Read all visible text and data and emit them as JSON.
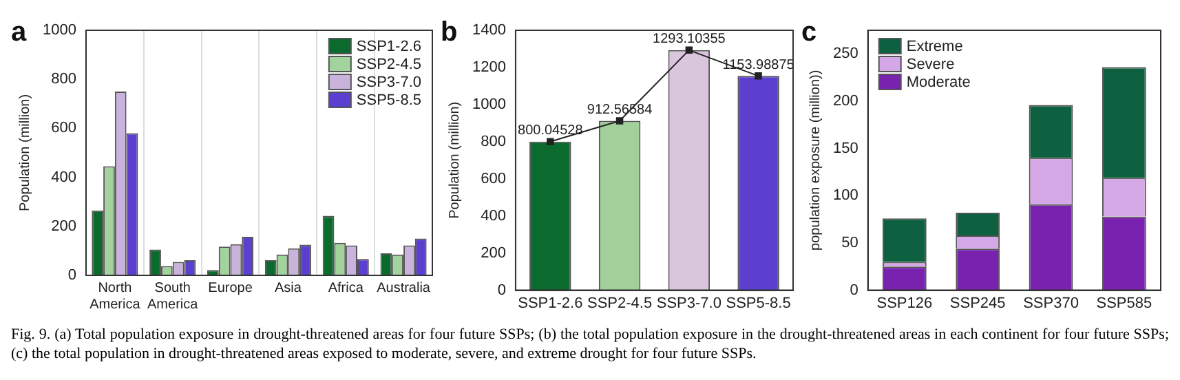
{
  "chart_data": [
    {
      "type": "bar",
      "title": "a",
      "ylabel": "Population (million)",
      "categories": [
        "North America",
        "South America",
        "Europe",
        "Asia",
        "Africa",
        "Australia"
      ],
      "series": [
        {
          "name": "SSP1-2.6",
          "color": "#0b6b2e",
          "values": [
            265,
            105,
            22,
            62,
            243,
            90
          ]
        },
        {
          "name": "SSP2-4.5",
          "color": "#a3d39c",
          "values": [
            445,
            38,
            117,
            85,
            133,
            85
          ]
        },
        {
          "name": "SSP3-7.0",
          "color": "#c9b3dd",
          "values": [
            750,
            55,
            127,
            110,
            122,
            122
          ]
        },
        {
          "name": "SSP5-8.5",
          "color": "#5b3fd1",
          "values": [
            580,
            62,
            157,
            125,
            67,
            150
          ]
        }
      ],
      "ylim": [
        0,
        1000
      ],
      "yticks": [
        0,
        200,
        400,
        600,
        800,
        1000
      ],
      "grid": "x",
      "legend": "top right",
      "annotations": [
        "Fig. 9. (a) Total population exposure in drought-threatened areas for four future SSPs; (b) the total population exposure in the drought-threatened areas in each continent for four future SSPs; (c) the total population in drought-threatened areas exposed to moderate, severe, and extreme drought for four future SSPs."
      ]
    },
    {
      "type": "bar",
      "title": "b",
      "ylabel": "Population (million)",
      "categories": [
        "SSP1-2.6",
        "SSP2-4.5",
        "SSP3-7.0",
        "SSP5-8.5"
      ],
      "series": [
        {
          "type": "bar",
          "colors": [
            "#0b6b2e",
            "#a3cf9a",
            "#d9c6dd",
            "#5c3fcf"
          ],
          "values": [
            800.04528,
            912.56584,
            1293.10355,
            1153.98875
          ]
        },
        {
          "type": "line",
          "color": "#222222",
          "marker": "square",
          "values": [
            800.04528,
            912.56584,
            1293.10355,
            1153.98875
          ],
          "value_labels": [
            "800.04528",
            "912.56584",
            "1293.10355",
            "1153.98875"
          ]
        }
      ],
      "ylim": [
        0,
        1400
      ],
      "yticks": [
        0,
        200,
        400,
        600,
        800,
        1000,
        1200,
        1400
      ]
    },
    {
      "type": "bar",
      "title": "c",
      "ylabel": "population exposure (million))",
      "categories": [
        "SSP126",
        "SSP245",
        "SSP370",
        "SSP585"
      ],
      "stacked": true,
      "series": [
        {
          "name": "Moderate",
          "color": "#7a22b0",
          "values": [
            25,
            44,
            91,
            78
          ]
        },
        {
          "name": "Severe",
          "color": "#d4a8e6",
          "values": [
            5,
            14,
            49,
            41
          ]
        },
        {
          "name": "Extreme",
          "color": "#0d6040",
          "values": [
            46,
            24,
            56,
            117
          ]
        }
      ],
      "ylim": [
        0,
        275
      ],
      "yticks": [
        0,
        50,
        100,
        150,
        200,
        250
      ],
      "legend": "top left"
    }
  ]
}
